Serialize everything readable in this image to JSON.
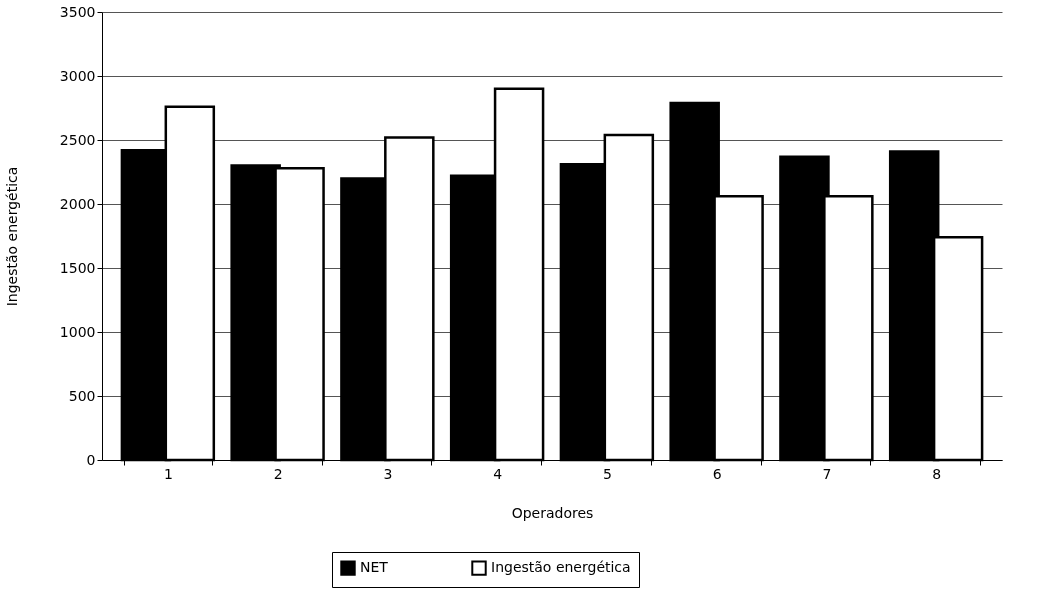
{
  "chart_data": {
    "type": "bar",
    "xlabel": "Operadores",
    "ylabel": "Ingestão energética",
    "categories": [
      "1",
      "2",
      "3",
      "4",
      "5",
      "6",
      "7",
      "8"
    ],
    "series": [
      {
        "name": "NET",
        "color": "#000000",
        "values": [
          2420,
          2300,
          2200,
          2220,
          2310,
          2790,
          2370,
          2410
        ]
      },
      {
        "name": "Ingestão energética",
        "color": "#ffffff",
        "values": [
          2760,
          2280,
          2520,
          2900,
          2540,
          2060,
          2060,
          1740
        ]
      }
    ],
    "ylim": [
      0,
      3500
    ],
    "yticks": [
      0,
      500,
      1000,
      1500,
      2000,
      2500,
      3000,
      3500
    ],
    "grid": "y",
    "legend": "bottom"
  }
}
